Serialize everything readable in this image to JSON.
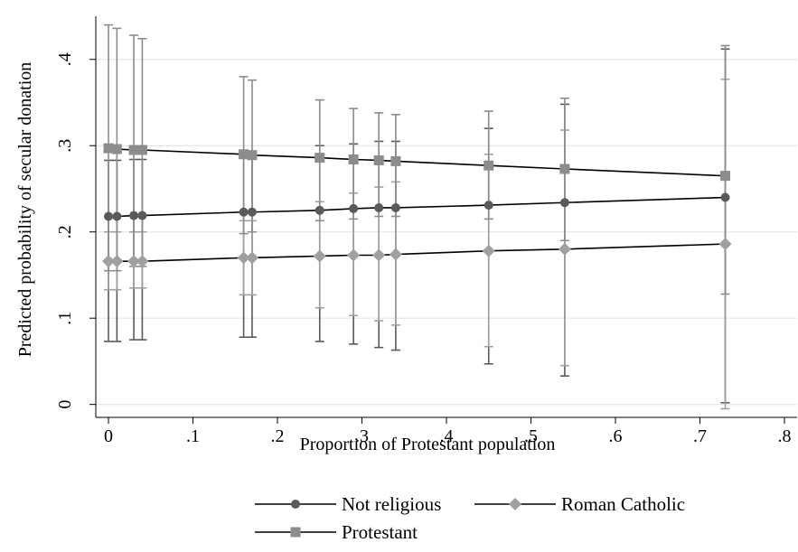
{
  "chart_data": {
    "type": "line",
    "xlabel": "Proportion of Protestant population",
    "ylabel": "Predicted probability  of secular donation",
    "xlim": [
      -0.015,
      0.815
    ],
    "ylim": [
      -0.015,
      0.45
    ],
    "x_ticks": [
      {
        "value": 0,
        "label": "0"
      },
      {
        "value": 0.1,
        "label": ".1"
      },
      {
        "value": 0.2,
        "label": ".2"
      },
      {
        "value": 0.3,
        "label": ".3"
      },
      {
        "value": 0.4,
        "label": ".4"
      },
      {
        "value": 0.5,
        "label": ".5"
      },
      {
        "value": 0.6,
        "label": ".6"
      },
      {
        "value": 0.7,
        "label": ".7"
      },
      {
        "value": 0.8,
        "label": ".8"
      }
    ],
    "y_ticks": [
      {
        "value": 0,
        "label": "0"
      },
      {
        "value": 0.1,
        "label": ".1"
      },
      {
        "value": 0.2,
        "label": ".2"
      },
      {
        "value": 0.3,
        "label": ".3"
      },
      {
        "value": 0.4,
        "label": ".4"
      }
    ],
    "grid": "horizontal",
    "legend_position": "bottom",
    "x": [
      0,
      0.01,
      0.03,
      0.04,
      0.16,
      0.17,
      0.25,
      0.29,
      0.32,
      0.34,
      0.45,
      0.54,
      0.73
    ],
    "series": [
      {
        "name": "Not religious",
        "marker": "circle",
        "color": "#5a5a5a",
        "values": [
          0.218,
          0.218,
          0.219,
          0.219,
          0.223,
          0.223,
          0.225,
          0.227,
          0.228,
          0.228,
          0.231,
          0.234,
          0.24
        ],
        "lower": [
          0.073,
          0.073,
          0.075,
          0.075,
          0.078,
          0.078,
          0.073,
          0.07,
          0.066,
          0.063,
          0.047,
          0.033,
          0.002
        ],
        "upper": [
          0.283,
          0.283,
          0.284,
          0.284,
          0.29,
          0.29,
          0.3,
          0.302,
          0.305,
          0.305,
          0.32,
          0.348,
          0.412
        ]
      },
      {
        "name": "Roman Catholic",
        "marker": "diamond",
        "color": "#a0a0a0",
        "values": [
          0.166,
          0.166,
          0.166,
          0.166,
          0.17,
          0.17,
          0.172,
          0.173,
          0.173,
          0.174,
          0.178,
          0.18,
          0.186
        ],
        "lower": [
          0.133,
          0.133,
          0.135,
          0.135,
          0.127,
          0.127,
          0.112,
          0.103,
          0.097,
          0.092,
          0.067,
          0.045,
          -0.005
        ],
        "upper": [
          0.2,
          0.2,
          0.2,
          0.2,
          0.213,
          0.213,
          0.235,
          0.245,
          0.252,
          0.258,
          0.29,
          0.318,
          0.377
        ]
      },
      {
        "name": "Protestant",
        "marker": "square",
        "color": "#8c8c8c",
        "values": [
          0.297,
          0.296,
          0.295,
          0.295,
          0.29,
          0.289,
          0.286,
          0.284,
          0.283,
          0.282,
          0.277,
          0.273,
          0.265
        ],
        "lower": [
          0.155,
          0.155,
          0.16,
          0.16,
          0.198,
          0.2,
          0.213,
          0.215,
          0.218,
          0.218,
          0.215,
          0.19,
          0.128
        ],
        "upper": [
          0.44,
          0.436,
          0.428,
          0.424,
          0.38,
          0.376,
          0.353,
          0.343,
          0.338,
          0.336,
          0.34,
          0.355,
          0.416
        ]
      }
    ],
    "legend": [
      {
        "label": "Not religious",
        "marker": "circle"
      },
      {
        "label": "Roman Catholic",
        "marker": "diamond"
      },
      {
        "label": "Protestant",
        "marker": "square"
      }
    ]
  }
}
